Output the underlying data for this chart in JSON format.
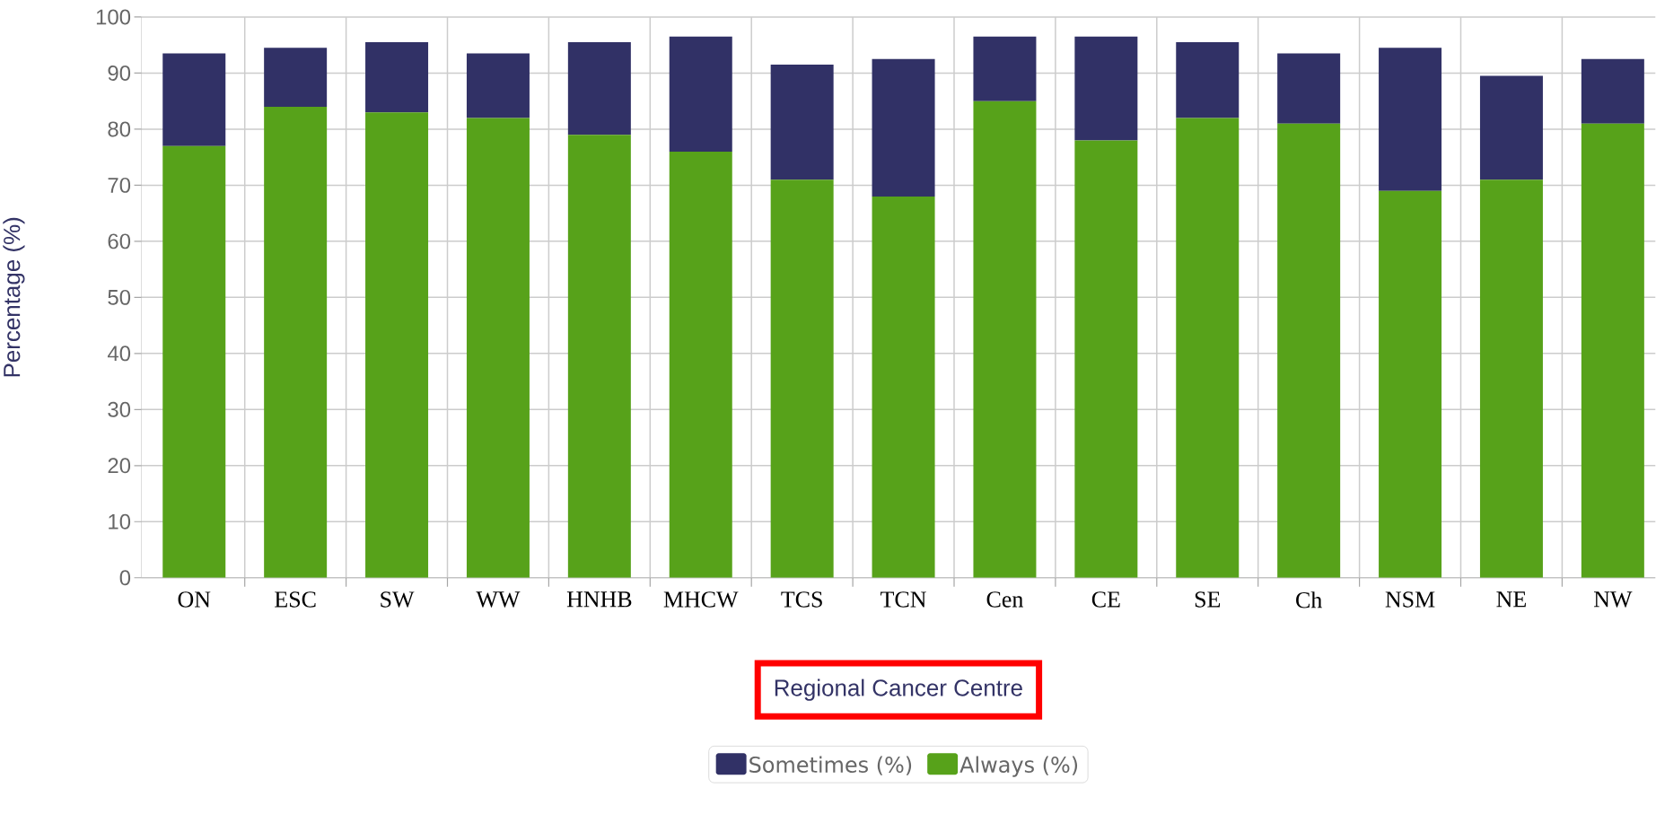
{
  "chart_data": {
    "type": "bar",
    "stacked": true,
    "xlabel": "Regional Cancer Centre",
    "ylabel": "Percentage (%)",
    "categories": [
      "ON",
      "ESC",
      "SW",
      "WW",
      "HNHB",
      "MHCW",
      "TCS",
      "TCN",
      "Cen",
      "CE",
      "SE",
      "Ch",
      "NSM",
      "NE",
      "NW"
    ],
    "series": [
      {
        "name": "Always (%)",
        "color": "#57a21a",
        "values": [
          77,
          84,
          83,
          82,
          79,
          76,
          71,
          68,
          85,
          78,
          82,
          81,
          69,
          71,
          81
        ]
      },
      {
        "name": "Sometimes (%)",
        "color": "#313166",
        "values": [
          16.5,
          10.5,
          12.5,
          11.5,
          16.5,
          20.5,
          20.5,
          24.5,
          11.5,
          18.5,
          13.5,
          12.5,
          25.5,
          18.5,
          11.5
        ]
      }
    ],
    "ylim": [
      0,
      100
    ],
    "yticks": [
      0,
      10,
      20,
      30,
      40,
      50,
      60,
      70,
      80,
      90,
      100
    ],
    "grid": true,
    "legend": "bottom"
  }
}
